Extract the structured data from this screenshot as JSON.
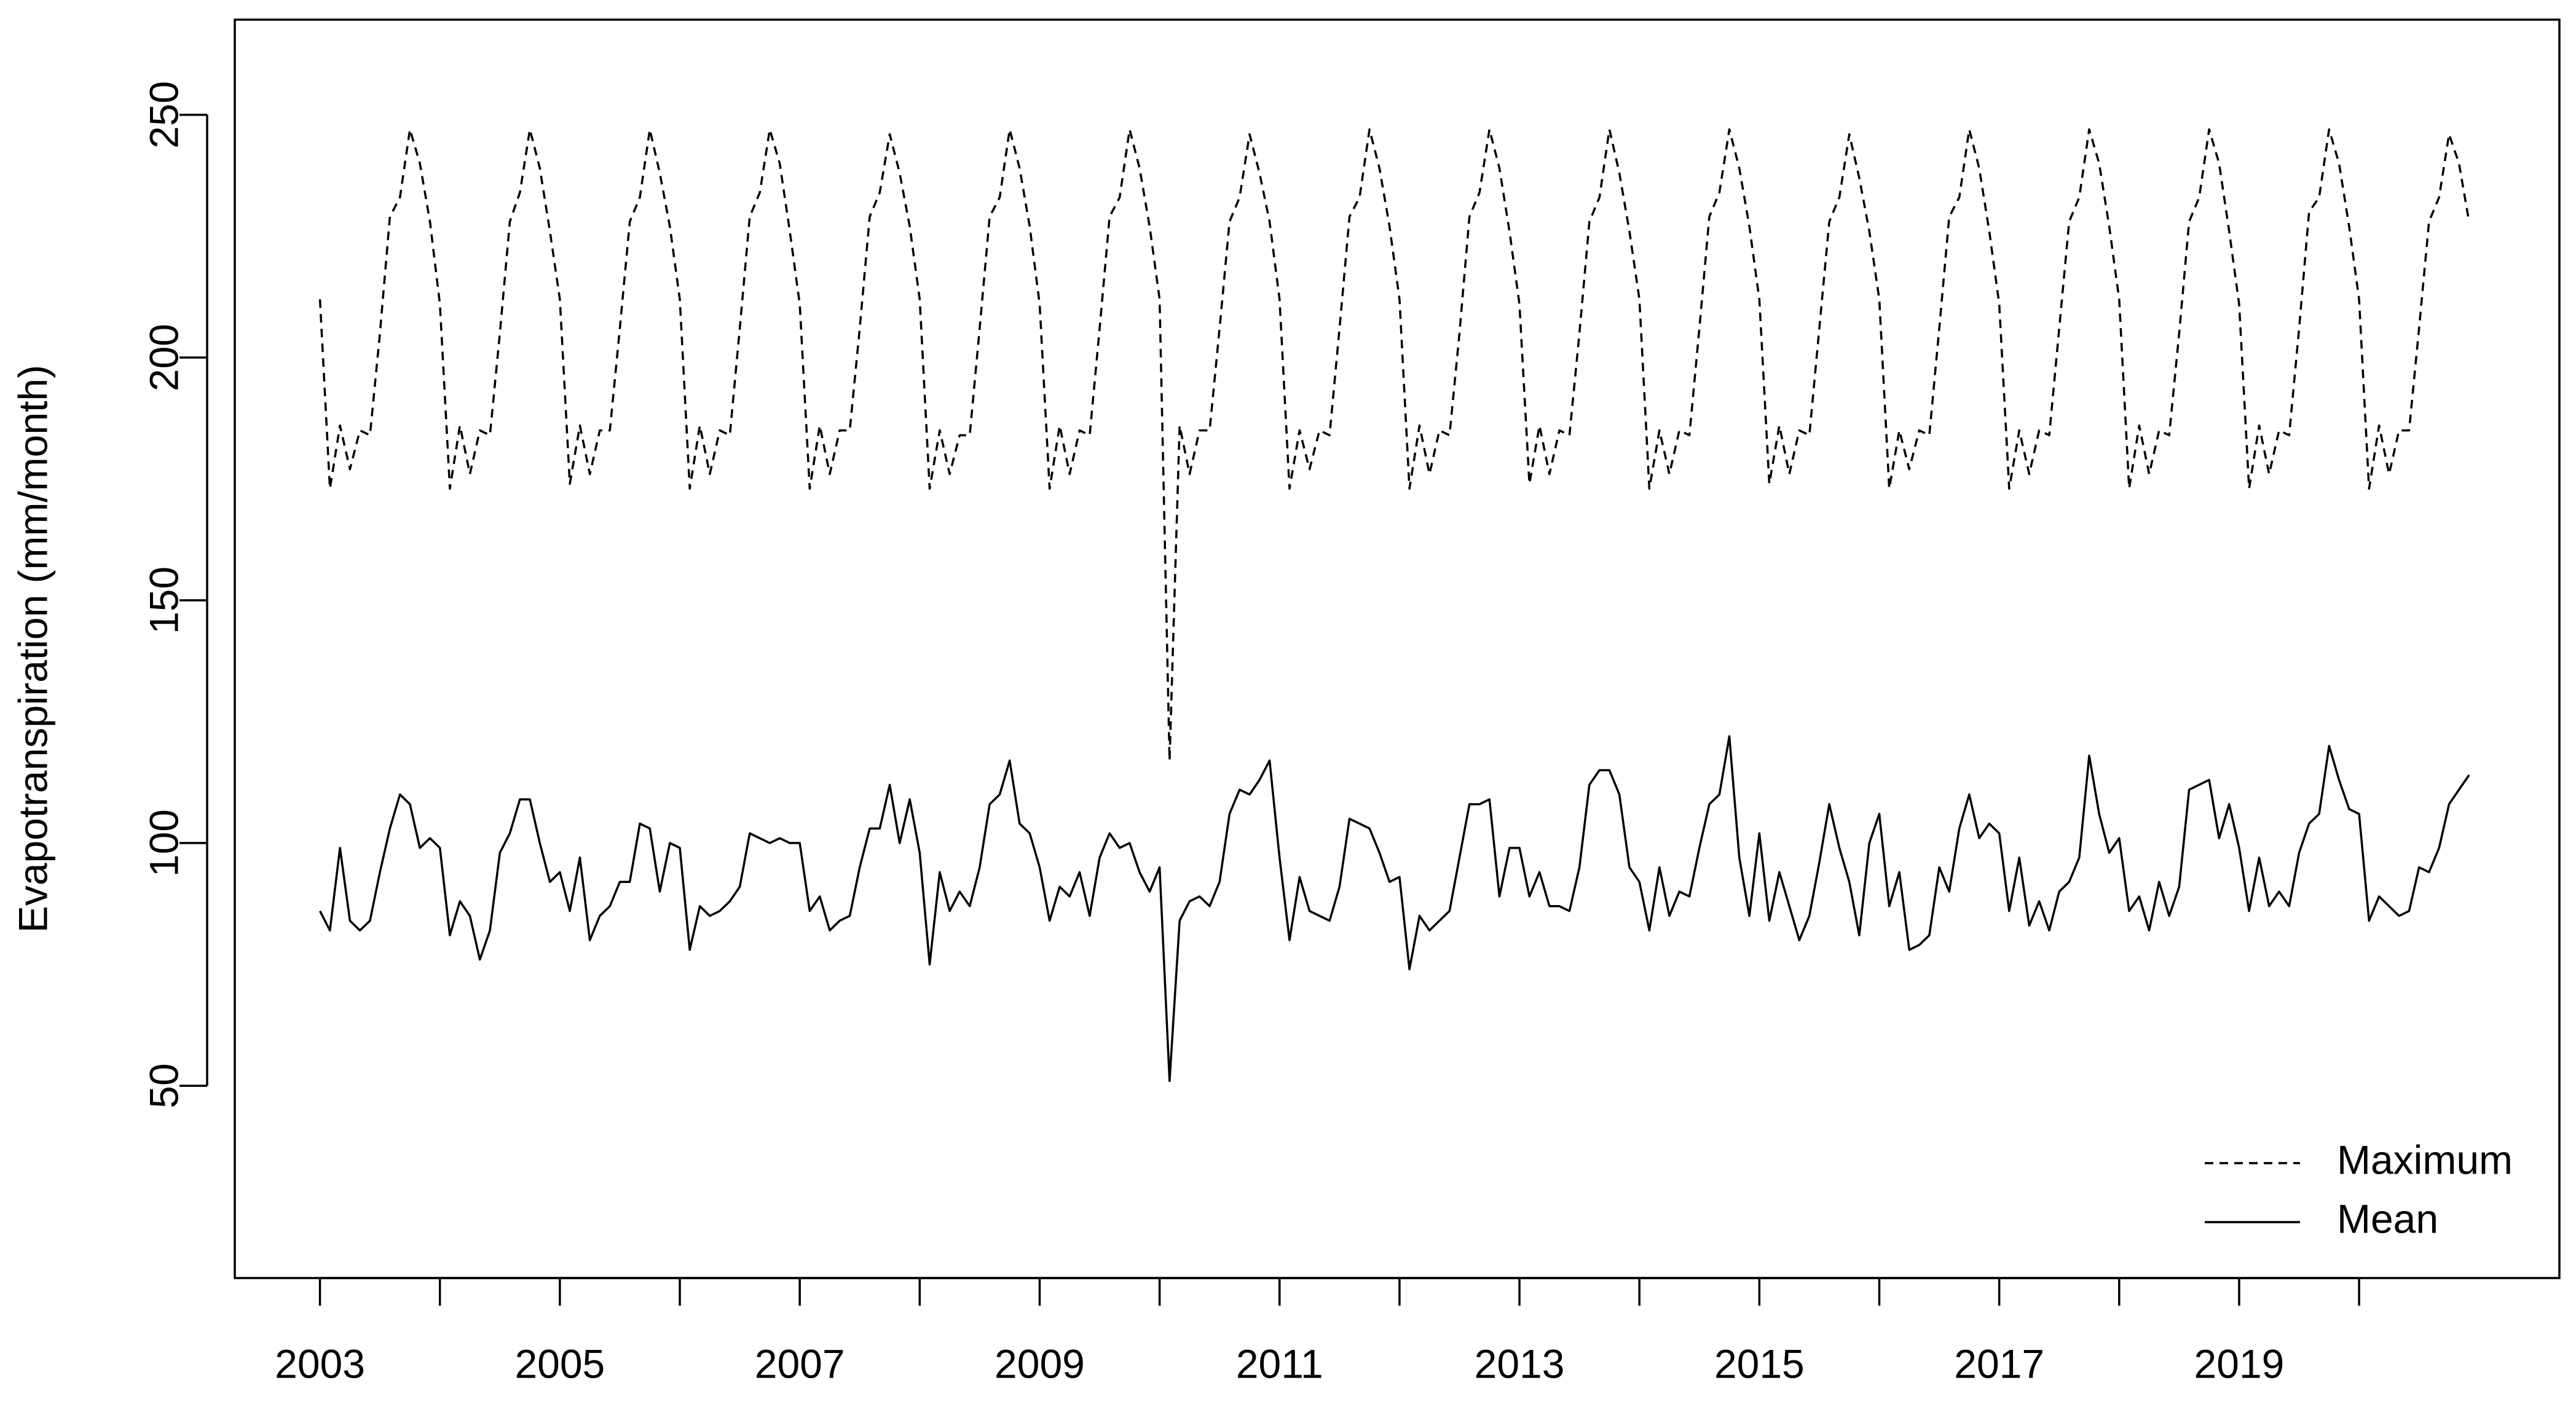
{
  "chart_data": {
    "type": "line",
    "ylabel": "Evapotranspiration (mm/month)",
    "xlim": [
      2002.29,
      2021.67
    ],
    "ylim": [
      10.4,
      269.6
    ],
    "yticks": [
      50,
      100,
      150,
      200,
      250
    ],
    "xticks": [
      2003,
      {
        "value": 2004,
        "label": null
      },
      2005,
      {
        "value": 2006,
        "label": null
      },
      2007,
      {
        "value": 2008,
        "label": null
      },
      2009,
      {
        "value": 2010,
        "label": null
      },
      2011,
      {
        "value": 2012,
        "label": null
      },
      2013,
      {
        "value": 2014,
        "label": null
      },
      2015,
      {
        "value": 2016,
        "label": null
      },
      2017,
      {
        "value": 2018,
        "label": null
      },
      2019,
      {
        "value": 2020,
        "label": null
      }
    ],
    "grid": false,
    "legend": "bottomright",
    "x": [
      2003,
      2003.083,
      2003.167,
      2003.25,
      2003.333,
      2003.417,
      2003.5,
      2003.583,
      2003.667,
      2003.75,
      2003.833,
      2003.917,
      2004,
      2004.083,
      2004.167,
      2004.25,
      2004.333,
      2004.417,
      2004.5,
      2004.583,
      2004.667,
      2004.75,
      2004.833,
      2004.917,
      2005,
      2005.083,
      2005.167,
      2005.25,
      2005.333,
      2005.417,
      2005.5,
      2005.583,
      2005.667,
      2005.75,
      2005.833,
      2005.917,
      2006,
      2006.083,
      2006.167,
      2006.25,
      2006.333,
      2006.417,
      2006.5,
      2006.583,
      2006.667,
      2006.75,
      2006.833,
      2006.917,
      2007,
      2007.083,
      2007.167,
      2007.25,
      2007.333,
      2007.417,
      2007.5,
      2007.583,
      2007.667,
      2007.75,
      2007.833,
      2007.917,
      2008,
      2008.083,
      2008.167,
      2008.25,
      2008.333,
      2008.417,
      2008.5,
      2008.583,
      2008.667,
      2008.75,
      2008.833,
      2008.917,
      2009,
      2009.083,
      2009.167,
      2009.25,
      2009.333,
      2009.417,
      2009.5,
      2009.583,
      2009.667,
      2009.75,
      2009.833,
      2009.917,
      2010,
      2010.083,
      2010.167,
      2010.25,
      2010.333,
      2010.417,
      2010.5,
      2010.583,
      2010.667,
      2010.75,
      2010.833,
      2010.917,
      2011,
      2011.083,
      2011.167,
      2011.25,
      2011.333,
      2011.417,
      2011.5,
      2011.583,
      2011.667,
      2011.75,
      2011.833,
      2011.917,
      2012,
      2012.083,
      2012.167,
      2012.25,
      2012.333,
      2012.417,
      2012.5,
      2012.583,
      2012.667,
      2012.75,
      2012.833,
      2012.917,
      2013,
      2013.083,
      2013.167,
      2013.25,
      2013.333,
      2013.417,
      2013.5,
      2013.583,
      2013.667,
      2013.75,
      2013.833,
      2013.917,
      2014,
      2014.083,
      2014.167,
      2014.25,
      2014.333,
      2014.417,
      2014.5,
      2014.583,
      2014.667,
      2014.75,
      2014.833,
      2014.917,
      2015,
      2015.083,
      2015.167,
      2015.25,
      2015.333,
      2015.417,
      2015.5,
      2015.583,
      2015.667,
      2015.75,
      2015.833,
      2015.917,
      2016,
      2016.083,
      2016.167,
      2016.25,
      2016.333,
      2016.417,
      2016.5,
      2016.583,
      2016.667,
      2016.75,
      2016.833,
      2016.917,
      2017,
      2017.083,
      2017.167,
      2017.25,
      2017.333,
      2017.417,
      2017.5,
      2017.583,
      2017.667,
      2017.75,
      2017.833,
      2017.917,
      2018,
      2018.083,
      2018.167,
      2018.25,
      2018.333,
      2018.417,
      2018.5,
      2018.583,
      2018.667,
      2018.75,
      2018.833,
      2018.917,
      2019,
      2019.083,
      2019.167,
      2019.25,
      2019.333,
      2019.417,
      2019.5,
      2019.583,
      2019.667,
      2019.75,
      2019.833,
      2019.917,
      2020,
      2020.083,
      2020.167,
      2020.25,
      2020.333,
      2020.417,
      2020.5,
      2020.583,
      2020.667,
      2020.75,
      2020.833,
      2020.917
    ],
    "series": [
      {
        "name": "Maximum",
        "color": "#000000",
        "linestyle": "dashed",
        "values": [
          212,
          173,
          186,
          177,
          185,
          184,
          205,
          229,
          233,
          247,
          240,
          228,
          211,
          173,
          186,
          176,
          185,
          184,
          205,
          228,
          234,
          247,
          239,
          226,
          212,
          174,
          186,
          176,
          185,
          185,
          206,
          228,
          233,
          247,
          238,
          227,
          212,
          173,
          186,
          176,
          185,
          184,
          206,
          229,
          234,
          247,
          240,
          226,
          211,
          173,
          186,
          176,
          185,
          185,
          206,
          229,
          234,
          246,
          238,
          227,
          212,
          173,
          185,
          176,
          184,
          184,
          206,
          229,
          233,
          247,
          239,
          227,
          211,
          173,
          186,
          176,
          185,
          184,
          206,
          229,
          233,
          247,
          239,
          227,
          212,
          117,
          186,
          176,
          185,
          185,
          206,
          228,
          233,
          246,
          238,
          228,
          212,
          173,
          185,
          177,
          185,
          184,
          206,
          229,
          233,
          247,
          239,
          227,
          212,
          173,
          186,
          176,
          185,
          184,
          205,
          229,
          234,
          247,
          239,
          226,
          211,
          174,
          186,
          176,
          185,
          184,
          205,
          228,
          233,
          247,
          238,
          226,
          212,
          173,
          185,
          176,
          185,
          184,
          206,
          229,
          234,
          247,
          239,
          227,
          212,
          174,
          186,
          176,
          185,
          184,
          206,
          228,
          233,
          246,
          237,
          226,
          212,
          173,
          185,
          177,
          185,
          184,
          206,
          229,
          233,
          247,
          239,
          226,
          211,
          173,
          185,
          176,
          185,
          184,
          206,
          228,
          233,
          247,
          240,
          227,
          212,
          173,
          186,
          176,
          185,
          184,
          205,
          228,
          233,
          247,
          240,
          226,
          211,
          173,
          186,
          176,
          185,
          184,
          206,
          230,
          233,
          247,
          240,
          227,
          212,
          173,
          186,
          176,
          185,
          185,
          206,
          228,
          233,
          246,
          240,
          228
        ]
      },
      {
        "name": "Mean",
        "color": "#000000",
        "linestyle": "solid",
        "values": [
          86,
          82,
          99,
          84,
          82,
          84,
          94,
          103,
          110,
          108,
          99,
          101,
          99,
          81,
          88,
          85,
          76,
          82,
          98,
          102,
          109,
          109,
          100,
          92,
          94,
          86,
          97,
          80,
          85,
          87,
          92,
          92,
          104,
          103,
          90,
          100,
          99,
          78,
          87,
          85,
          86,
          88,
          91,
          102,
          101,
          100,
          101,
          100,
          100,
          86,
          89,
          82,
          84,
          85,
          95,
          103,
          103,
          112,
          100,
          109,
          98,
          75,
          94,
          86,
          90,
          87,
          95,
          108,
          110,
          117,
          104,
          102,
          95,
          84,
          91,
          89,
          94,
          85,
          97,
          102,
          99,
          100,
          94,
          90,
          95,
          51,
          84,
          88,
          89,
          87,
          92,
          106,
          111,
          110,
          113,
          117,
          97,
          80,
          93,
          86,
          85,
          84,
          91,
          105,
          104,
          103,
          98,
          92,
          93,
          74,
          85,
          82,
          84,
          86,
          97,
          108,
          108,
          109,
          89,
          99,
          99,
          89,
          94,
          87,
          87,
          86,
          95,
          112,
          115,
          115,
          110,
          95,
          92,
          82,
          95,
          85,
          90,
          89,
          99,
          108,
          110,
          122,
          97,
          85,
          102,
          84,
          94,
          87,
          80,
          85,
          96,
          108,
          99,
          92,
          81,
          100,
          106,
          87,
          94,
          78,
          79,
          81,
          95,
          90,
          103,
          110,
          101,
          104,
          102,
          86,
          97,
          83,
          88,
          82,
          90,
          92,
          97,
          118,
          106,
          98,
          101,
          86,
          89,
          82,
          92,
          85,
          91,
          111,
          112,
          113,
          101,
          108,
          99,
          86,
          97,
          87,
          90,
          87,
          98,
          104,
          106,
          120,
          113,
          107,
          106,
          84,
          89,
          87,
          85,
          86,
          95,
          94,
          99,
          108,
          111,
          114
        ]
      }
    ]
  }
}
